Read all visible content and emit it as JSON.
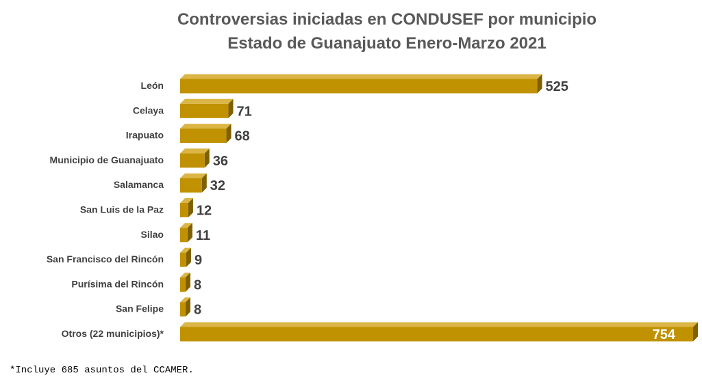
{
  "chart_data": {
    "type": "bar",
    "orientation": "horizontal",
    "style": "3d",
    "title": "Controversias iniciadas en CONDUSEF por municipio",
    "subtitle": "Estado de Guanajuato Enero-Marzo 2021",
    "categories": [
      "León",
      "Celaya",
      "Irapuato",
      "Municipio de Guanajuato",
      "Salamanca",
      "San Luis de la Paz",
      "Silao",
      "San Francisco del Rincón",
      "Purísima del Rincón",
      "San Felipe",
      "Otros (22 municipios)*"
    ],
    "values": [
      525,
      71,
      68,
      36,
      32,
      12,
      11,
      9,
      8,
      8,
      754
    ],
    "data_labels": [
      "525",
      "71",
      "68",
      "36",
      "32",
      "12",
      "11",
      "9",
      "8",
      "8",
      "754"
    ],
    "xlim": [
      0,
      754
    ],
    "xlabel": "",
    "ylabel": "",
    "grid": false,
    "legend": "none",
    "colors": {
      "bar_front": "#C09100",
      "bar_top": "#DBB646",
      "bar_side": "#7F6000",
      "label_text": "#404040",
      "inside_label_text": "#ffffff",
      "title_text": "#595959"
    }
  },
  "footnote": "*Incluye 685 asuntos del CCAMER."
}
